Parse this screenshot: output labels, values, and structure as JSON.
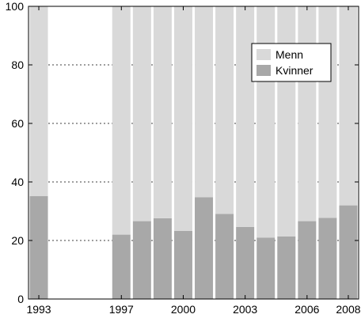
{
  "chart_data": {
    "type": "bar",
    "stacked": true,
    "percent_stacked": true,
    "categories": [
      "1993",
      "1994",
      "1995",
      "1996",
      "1997",
      "1998",
      "1999",
      "2000",
      "2001",
      "2002",
      "2003",
      "2004",
      "2005",
      "2006",
      "2007",
      "2008"
    ],
    "series": [
      {
        "name": "Kvinner",
        "color": "#a8a8a8",
        "values": [
          35.2,
          null,
          null,
          null,
          22.0,
          26.6,
          27.6,
          23.3,
          34.8,
          29.1,
          24.6,
          21.0,
          21.4,
          26.6,
          27.7,
          32.0
        ]
      },
      {
        "name": "Menn",
        "color": "#d9d9d9",
        "values": [
          64.8,
          null,
          null,
          null,
          78.0,
          73.4,
          72.4,
          76.7,
          65.2,
          70.9,
          75.4,
          79.0,
          78.6,
          73.4,
          72.3,
          68.0
        ]
      }
    ],
    "x_tick_labels": [
      "1993",
      "1997",
      "2000",
      "2003",
      "2006",
      "2008"
    ],
    "y_ticks": [
      0,
      20,
      40,
      60,
      80,
      100
    ],
    "ylim": [
      0,
      100
    ],
    "grid": "horizontal dotted",
    "legend": {
      "placement": "top-right",
      "entries": [
        "Menn",
        "Kvinner"
      ]
    },
    "title": "",
    "xlabel": "",
    "ylabel": ""
  }
}
